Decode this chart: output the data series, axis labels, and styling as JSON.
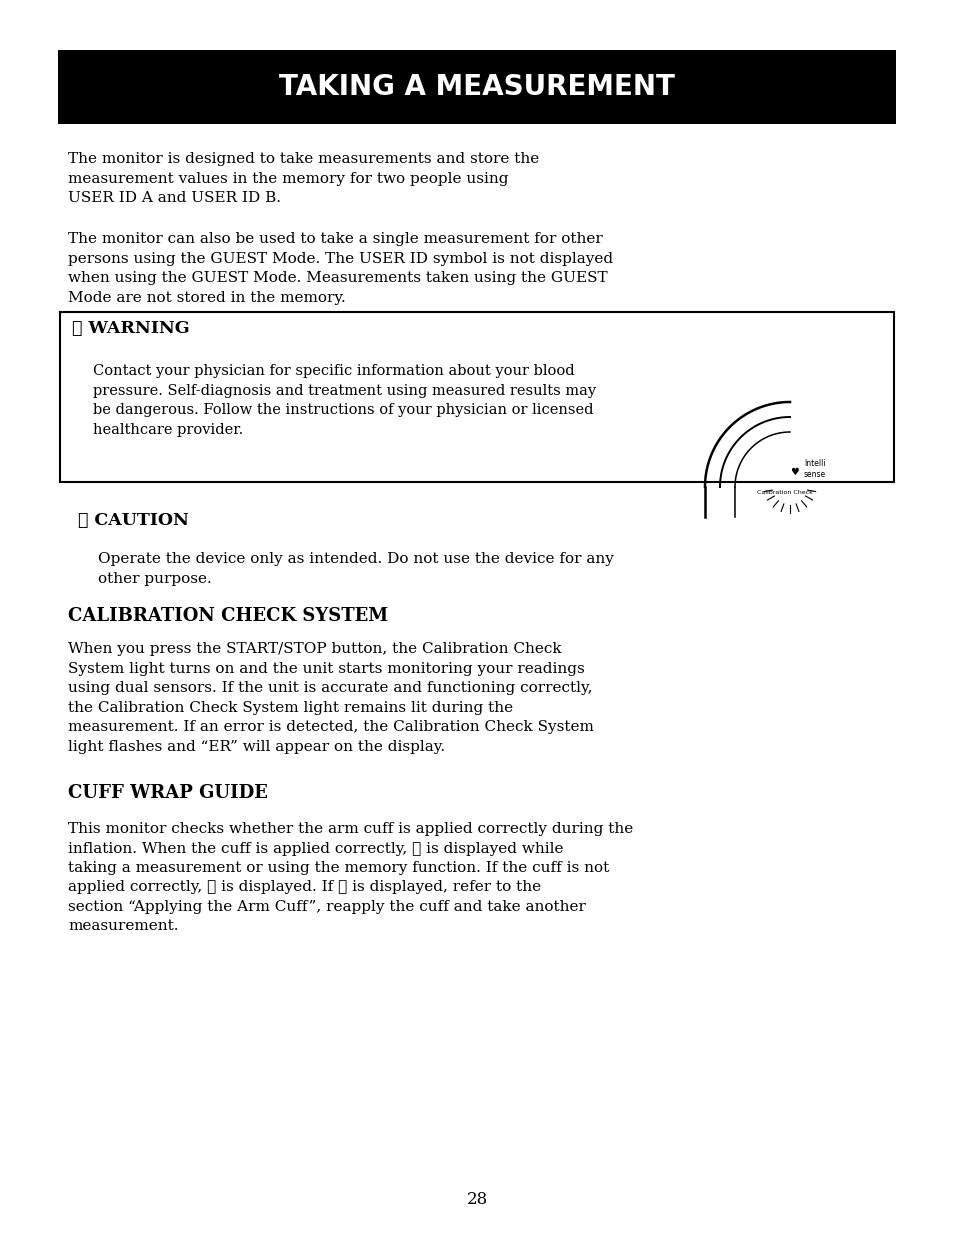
{
  "title": "TAKING A MEASUREMENT",
  "title_bg": "#000000",
  "title_color": "#ffffff",
  "page_bg": "#ffffff",
  "page_number": "28",
  "para1": "The monitor is designed to take measurements and store the\nmeasurement values in the memory for two people using\nUSER ID A and USER ID B.",
  "para2": "The monitor can also be used to take a single measurement for other\npersons using the GUEST Mode. The USER ID symbol is not displayed\nwhen using the GUEST Mode. Measurements taken using the GUEST\nMode are not stored in the memory.",
  "warning_title": "⚠ WARNING",
  "warning_text": "Contact your physician for specific information about your blood\npressure. Self-diagnosis and treatment using measured results may\nbe dangerous. Follow the instructions of your physician or licensed\nhealthcare provider.",
  "caution_title": "⚠ CAUTION",
  "caution_text": "Operate the device only as intended. Do not use the device for any\nother purpose.",
  "section1_title": "CALIBRATION CHECK SYSTEM",
  "section1_text": "When you press the START/STOP button, the Calibration Check\nSystem light turns on and the unit starts monitoring your readings\nusing dual sensors. If the unit is accurate and functioning correctly,\nthe Calibration Check System light remains lit during the\nmeasurement. If an error is detected, the Calibration Check System\nlight flashes and “ER” will appear on the display.",
  "section2_title": "CUFF WRAP GUIDE",
  "section2_text": "This monitor checks whether the arm cuff is applied correctly during the\ninflation. When the cuff is applied correctly, ⒪ is displayed while\ntaking a measurement or using the memory function. If the cuff is not\napplied correctly, Ⓞ is displayed. If Ⓞ is displayed, refer to the\nsection “Applying the Arm Cuff”, reapply the cuff and take another\nmeasurement.",
  "body_fontsize": 11.0,
  "title_fontsize": 20.0,
  "heading_fontsize": 13.0,
  "warn_heading_fontsize": 12.5
}
